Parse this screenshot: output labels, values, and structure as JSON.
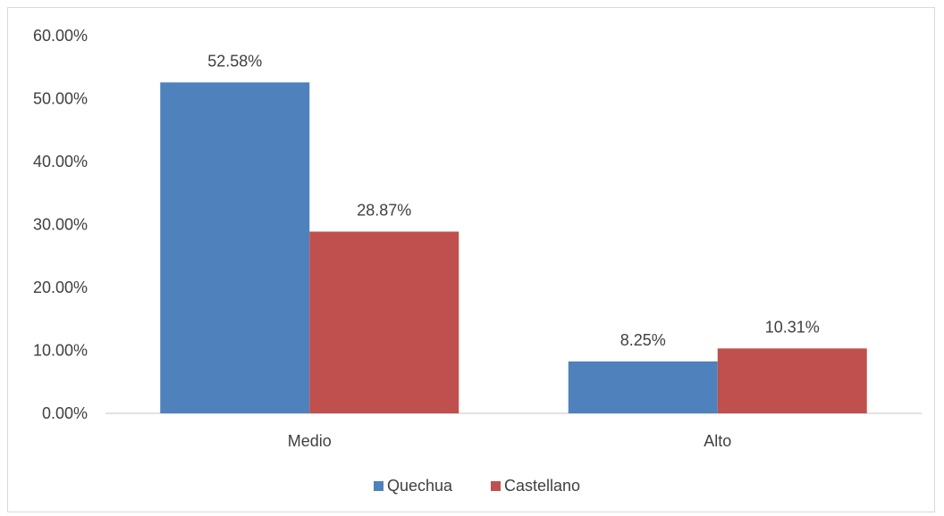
{
  "chart_data": {
    "type": "bar",
    "title": "",
    "xlabel": "",
    "ylabel": "",
    "categories": [
      "Medio",
      "Alto"
    ],
    "series": [
      {
        "name": "Quechua",
        "values": [
          52.58,
          8.25
        ],
        "labels": [
          "52.58%",
          "8.25%"
        ],
        "color": "#4f81bd"
      },
      {
        "name": "Castellano",
        "values": [
          28.87,
          10.31
        ],
        "labels": [
          "28.87%",
          "10.31%"
        ],
        "color": "#c0504d"
      }
    ],
    "ylim": [
      0,
      60
    ],
    "yticks": [
      0,
      10,
      20,
      30,
      40,
      50,
      60
    ],
    "ytick_labels": [
      "0.00%",
      "10.00%",
      "20.00%",
      "30.00%",
      "40.00%",
      "50.00%",
      "60.00%"
    ],
    "grid": false,
    "legend": "bottom",
    "colors": {
      "axis": "#d9d9d9",
      "text": "#404040"
    }
  }
}
